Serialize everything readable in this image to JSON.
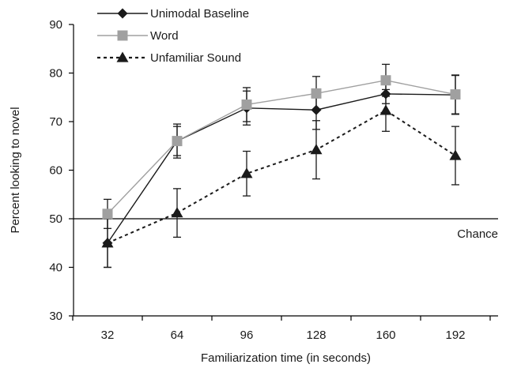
{
  "chart_data": {
    "type": "line",
    "title": "",
    "xlabel": "Familiarization time (in seconds)",
    "ylabel": "Percent looking to novel",
    "x": [
      32,
      64,
      96,
      128,
      160,
      192
    ],
    "ylim": [
      30,
      90
    ],
    "yticks": [
      30,
      40,
      50,
      60,
      70,
      80,
      90
    ],
    "grid": false,
    "legend_position": "top-left",
    "reference_line": {
      "y": 50,
      "label": "Chance"
    },
    "series": [
      {
        "name": "Unimodal Baseline",
        "marker": "diamond",
        "color": "#1a1a1a",
        "line_style": "solid",
        "values": [
          45,
          66,
          72.8,
          72.4,
          75.7,
          75.5
        ],
        "error": [
          5,
          3.5,
          3.5,
          4,
          2,
          4
        ]
      },
      {
        "name": "Word",
        "marker": "square",
        "color": "#a0a0a0",
        "line_style": "solid",
        "values": [
          51,
          66,
          73.5,
          75.8,
          78.5,
          75.6
        ],
        "error": [
          3,
          3,
          3.5,
          3.5,
          3.3,
          4
        ]
      },
      {
        "name": "Unfamiliar Sound",
        "marker": "triangle",
        "color": "#1a1a1a",
        "line_style": "dashed",
        "values": [
          45,
          51.2,
          59.3,
          64.2,
          72.3,
          63
        ],
        "error": [
          5,
          5,
          4.6,
          6,
          4.3,
          6
        ]
      }
    ]
  }
}
